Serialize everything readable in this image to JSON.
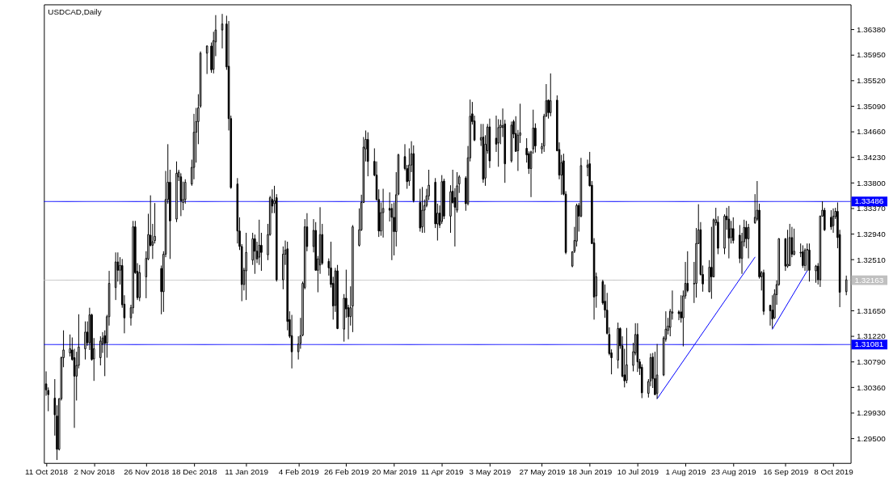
{
  "chart_data": {
    "type": "candlestick",
    "title": "USDCAD,Daily",
    "color": "#000000",
    "x": [
      "2018-10-11",
      "2018-10-12",
      "2018-10-15",
      "2018-10-16",
      "2018-10-17",
      "2018-10-18",
      "2018-10-19",
      "2018-10-22",
      "2018-10-23",
      "2018-10-24",
      "2018-10-25",
      "2018-10-26",
      "2018-10-29",
      "2018-10-30",
      "2018-10-31",
      "2018-11-01",
      "2018-11-02",
      "2018-11-05",
      "2018-11-06",
      "2018-11-07",
      "2018-11-08",
      "2018-11-09",
      "2018-11-12",
      "2018-11-13",
      "2018-11-14",
      "2018-11-15",
      "2018-11-16",
      "2018-11-19",
      "2018-11-20",
      "2018-11-21",
      "2018-11-22",
      "2018-11-23",
      "2018-11-26",
      "2018-11-27",
      "2018-11-28",
      "2018-11-29",
      "2018-11-30",
      "2018-12-03",
      "2018-12-04",
      "2018-12-05",
      "2018-12-06",
      "2018-12-07",
      "2018-12-10",
      "2018-12-11",
      "2018-12-12",
      "2018-12-13",
      "2018-12-14",
      "2018-12-17",
      "2018-12-18",
      "2018-12-19",
      "2018-12-20",
      "2018-12-21",
      "2018-12-24",
      "2018-12-26",
      "2018-12-27",
      "2018-12-28",
      "2018-12-31",
      "2019-01-02",
      "2019-01-03",
      "2019-01-04",
      "2019-01-07",
      "2019-01-08",
      "2019-01-09",
      "2019-01-10",
      "2019-01-11",
      "2019-01-14",
      "2019-01-15",
      "2019-01-16",
      "2019-01-17",
      "2019-01-18",
      "2019-01-21",
      "2019-01-22",
      "2019-01-23",
      "2019-01-24",
      "2019-01-25",
      "2019-01-28",
      "2019-01-29",
      "2019-01-30",
      "2019-01-31",
      "2019-02-01",
      "2019-02-04",
      "2019-02-05",
      "2019-02-06",
      "2019-02-07",
      "2019-02-08",
      "2019-02-11",
      "2019-02-12",
      "2019-02-13",
      "2019-02-14",
      "2019-02-15",
      "2019-02-18",
      "2019-02-19",
      "2019-02-20",
      "2019-02-21",
      "2019-02-22",
      "2019-02-25",
      "2019-02-26",
      "2019-02-27",
      "2019-02-28",
      "2019-03-01",
      "2019-03-04",
      "2019-03-05",
      "2019-03-06",
      "2019-03-07",
      "2019-03-08",
      "2019-03-11",
      "2019-03-12",
      "2019-03-13",
      "2019-03-14",
      "2019-03-15",
      "2019-03-18",
      "2019-03-19",
      "2019-03-20",
      "2019-03-21",
      "2019-03-22",
      "2019-03-25",
      "2019-03-26",
      "2019-03-27",
      "2019-03-28",
      "2019-03-29",
      "2019-04-01",
      "2019-04-02",
      "2019-04-03",
      "2019-04-04",
      "2019-04-05",
      "2019-04-08",
      "2019-04-09",
      "2019-04-10",
      "2019-04-11",
      "2019-04-12",
      "2019-04-15",
      "2019-04-16",
      "2019-04-17",
      "2019-04-18",
      "2019-04-19",
      "2019-04-22",
      "2019-04-23",
      "2019-04-24",
      "2019-04-25",
      "2019-04-26",
      "2019-04-29",
      "2019-04-30",
      "2019-05-01",
      "2019-05-02",
      "2019-05-03",
      "2019-05-06",
      "2019-05-07",
      "2019-05-08",
      "2019-05-09",
      "2019-05-10",
      "2019-05-13",
      "2019-05-14",
      "2019-05-15",
      "2019-05-16",
      "2019-05-17",
      "2019-05-20",
      "2019-05-21",
      "2019-05-22",
      "2019-05-23",
      "2019-05-24",
      "2019-05-27",
      "2019-05-28",
      "2019-05-29",
      "2019-05-30",
      "2019-05-31",
      "2019-06-03",
      "2019-06-04",
      "2019-06-05",
      "2019-06-06",
      "2019-06-07",
      "2019-06-10",
      "2019-06-11",
      "2019-06-12",
      "2019-06-13",
      "2019-06-14",
      "2019-06-17",
      "2019-06-18",
      "2019-06-19",
      "2019-06-20",
      "2019-06-21",
      "2019-06-24",
      "2019-06-25",
      "2019-06-26",
      "2019-06-27",
      "2019-06-28",
      "2019-07-01",
      "2019-07-02",
      "2019-07-03",
      "2019-07-04",
      "2019-07-05",
      "2019-07-08",
      "2019-07-09",
      "2019-07-10",
      "2019-07-11",
      "2019-07-12",
      "2019-07-15",
      "2019-07-16",
      "2019-07-17",
      "2019-07-18",
      "2019-07-19",
      "2019-07-22",
      "2019-07-23",
      "2019-07-24",
      "2019-07-25",
      "2019-07-26",
      "2019-07-29",
      "2019-07-30",
      "2019-07-31",
      "2019-08-01",
      "2019-08-02",
      "2019-08-05",
      "2019-08-06",
      "2019-08-07",
      "2019-08-08",
      "2019-08-09",
      "2019-08-12",
      "2019-08-13",
      "2019-08-14",
      "2019-08-15",
      "2019-08-16",
      "2019-08-19",
      "2019-08-20",
      "2019-08-21",
      "2019-08-22",
      "2019-08-23",
      "2019-08-26",
      "2019-08-27",
      "2019-08-28",
      "2019-08-29",
      "2019-08-30",
      "2019-09-02",
      "2019-09-03",
      "2019-09-04",
      "2019-09-05",
      "2019-09-06",
      "2019-09-09",
      "2019-09-10",
      "2019-09-11",
      "2019-09-12",
      "2019-09-13",
      "2019-09-16",
      "2019-09-17",
      "2019-09-18",
      "2019-09-19",
      "2019-09-20",
      "2019-09-23",
      "2019-09-24",
      "2019-09-25",
      "2019-09-26",
      "2019-09-27",
      "2019-09-30",
      "2019-10-01",
      "2019-10-02",
      "2019-10-03",
      "2019-10-04",
      "2019-10-07",
      "2019-10-08",
      "2019-10-09",
      "2019-10-10",
      "2019-10-11",
      "2019-10-14"
    ],
    "ohlc": [
      [
        1.3042,
        1.3063,
        1.3022,
        1.3032
      ],
      [
        1.3031,
        1.3036,
        1.2996,
        1.3024
      ],
      [
        1.3018,
        1.305,
        1.2955,
        1.299
      ],
      [
        1.2988,
        1.3006,
        1.2914,
        1.2932
      ],
      [
        1.2932,
        1.3018,
        1.293,
        1.3017
      ],
      [
        1.3017,
        1.3088,
        1.3014,
        1.3086
      ],
      [
        1.3086,
        1.3132,
        1.307,
        1.3099
      ],
      [
        1.3094,
        1.3125,
        1.3088,
        1.3101
      ],
      [
        1.3099,
        1.312,
        1.3081,
        1.3083
      ],
      [
        1.3086,
        1.3101,
        1.2968,
        1.3055
      ],
      [
        1.3055,
        1.3096,
        1.3014,
        1.3073
      ],
      [
        1.3073,
        1.3159,
        1.3068,
        1.3104
      ],
      [
        1.3101,
        1.3147,
        1.3083,
        1.3129
      ],
      [
        1.3129,
        1.3147,
        1.3106,
        1.3111
      ],
      [
        1.3111,
        1.317,
        1.3099,
        1.3158
      ],
      [
        1.3158,
        1.316,
        1.3081,
        1.3083
      ],
      [
        1.3084,
        1.3119,
        1.3047,
        1.3101
      ],
      [
        1.3086,
        1.3122,
        1.3073,
        1.3114
      ],
      [
        1.3109,
        1.3129,
        1.3094,
        1.3119
      ],
      [
        1.3123,
        1.3132,
        1.3055,
        1.311
      ],
      [
        1.3111,
        1.3158,
        1.3086,
        1.3155
      ],
      [
        1.3155,
        1.3232,
        1.314,
        1.3211
      ],
      [
        1.3204,
        1.3263,
        1.3183,
        1.3247
      ],
      [
        1.3247,
        1.3263,
        1.3214,
        1.3233
      ],
      [
        1.3233,
        1.3255,
        1.3209,
        1.3241
      ],
      [
        1.3241,
        1.3252,
        1.317,
        1.3175
      ],
      [
        1.3176,
        1.3191,
        1.3127,
        1.3153
      ],
      [
        1.3153,
        1.3175,
        1.314,
        1.317
      ],
      [
        1.317,
        1.3316,
        1.316,
        1.3306
      ],
      [
        1.3306,
        1.3316,
        1.3227,
        1.3229
      ],
      [
        1.3231,
        1.3245,
        1.3183,
        1.3187
      ],
      [
        1.3187,
        1.3242,
        1.3181,
        1.3229
      ],
      [
        1.3222,
        1.3265,
        1.3186,
        1.3253
      ],
      [
        1.3252,
        1.3328,
        1.325,
        1.3293
      ],
      [
        1.3292,
        1.3359,
        1.3273,
        1.3275
      ],
      [
        1.3275,
        1.3311,
        1.3252,
        1.3281
      ],
      [
        1.3283,
        1.3346,
        1.3278,
        1.329
      ],
      [
        1.3236,
        1.3241,
        1.3159,
        1.3197
      ],
      [
        1.3197,
        1.3265,
        1.3163,
        1.326
      ],
      [
        1.326,
        1.34,
        1.3255,
        1.3352
      ],
      [
        1.3352,
        1.3445,
        1.3345,
        1.3381
      ],
      [
        1.3381,
        1.3402,
        1.3252,
        1.3316
      ],
      [
        1.3319,
        1.3416,
        1.3314,
        1.3396
      ],
      [
        1.339,
        1.3402,
        1.3383,
        1.3398
      ],
      [
        1.339,
        1.3396,
        1.3324,
        1.335
      ],
      [
        1.3347,
        1.3382,
        1.3334,
        1.3352
      ],
      [
        1.3352,
        1.3386,
        1.3345,
        1.3381
      ],
      [
        1.3378,
        1.3419,
        1.3375,
        1.3406
      ],
      [
        1.3406,
        1.3496,
        1.3386,
        1.3465
      ],
      [
        1.3465,
        1.3506,
        1.3414,
        1.3483
      ],
      [
        1.3483,
        1.3529,
        1.3445,
        1.3506
      ],
      [
        1.3509,
        1.3601,
        1.3506,
        1.3598
      ],
      [
        1.3598,
        1.3611,
        1.3563,
        1.361
      ],
      [
        1.361,
        1.3616,
        1.3565,
        1.357
      ],
      [
        1.3571,
        1.3634,
        1.3564,
        1.3619
      ],
      [
        1.3617,
        1.3662,
        1.3593,
        1.3637
      ],
      [
        1.3637,
        1.3664,
        1.3606,
        1.3647
      ],
      [
        1.3647,
        1.3661,
        1.357,
        1.3575
      ],
      [
        1.3576,
        1.3652,
        1.3468,
        1.3488
      ],
      [
        1.3488,
        1.3493,
        1.337,
        1.3372
      ],
      [
        1.3378,
        1.3388,
        1.3278,
        1.3299
      ],
      [
        1.3299,
        1.3322,
        1.3267,
        1.3273
      ],
      [
        1.3273,
        1.3277,
        1.3181,
        1.3209
      ],
      [
        1.3209,
        1.3237,
        1.3199,
        1.3233
      ],
      [
        1.3232,
        1.3296,
        1.3183,
        1.3263
      ],
      [
        1.325,
        1.3296,
        1.3242,
        1.3286
      ],
      [
        1.3286,
        1.3293,
        1.3227,
        1.3265
      ],
      [
        1.3265,
        1.3281,
        1.3245,
        1.3252
      ],
      [
        1.3255,
        1.3318,
        1.3242,
        1.3275
      ],
      [
        1.3275,
        1.3296,
        1.3232,
        1.3263
      ],
      [
        1.3259,
        1.3311,
        1.325,
        1.3293
      ],
      [
        1.3293,
        1.3358,
        1.3291,
        1.3355
      ],
      [
        1.3352,
        1.3369,
        1.3329,
        1.3341
      ],
      [
        1.3345,
        1.3375,
        1.3329,
        1.335
      ],
      [
        1.3355,
        1.3361,
        1.3214,
        1.3217
      ],
      [
        1.3217,
        1.3273,
        1.3201,
        1.326
      ],
      [
        1.326,
        1.3283,
        1.3242,
        1.3267
      ],
      [
        1.3269,
        1.3281,
        1.3132,
        1.3147
      ],
      [
        1.315,
        1.3164,
        1.3119,
        1.3122
      ],
      [
        1.3123,
        1.3158,
        1.3068,
        1.3096
      ],
      [
        1.3096,
        1.3122,
        1.3083,
        1.3109
      ],
      [
        1.311,
        1.3153,
        1.3101,
        1.3123
      ],
      [
        1.3124,
        1.3214,
        1.3122,
        1.3211
      ],
      [
        1.3204,
        1.3319,
        1.3201,
        1.3306
      ],
      [
        1.3306,
        1.3329,
        1.3265,
        1.3273
      ],
      [
        1.3273,
        1.3319,
        1.3263,
        1.33
      ],
      [
        1.33,
        1.3314,
        1.3232,
        1.3233
      ],
      [
        1.3233,
        1.3257,
        1.3196,
        1.3252
      ],
      [
        1.3242,
        1.3339,
        1.3227,
        1.3293
      ],
      [
        1.3293,
        1.3311,
        1.3242,
        1.3245
      ],
      [
        1.3248,
        1.3253,
        1.3224,
        1.3237
      ],
      [
        1.3237,
        1.3281,
        1.3204,
        1.3209
      ],
      [
        1.3211,
        1.3222,
        1.315,
        1.3173
      ],
      [
        1.3174,
        1.3237,
        1.3163,
        1.3232
      ],
      [
        1.3232,
        1.3242,
        1.3134,
        1.3135
      ],
      [
        1.3134,
        1.3193,
        1.3113,
        1.3186
      ],
      [
        1.3186,
        1.3234,
        1.3153,
        1.3168
      ],
      [
        1.317,
        1.3175,
        1.3117,
        1.3155
      ],
      [
        1.3155,
        1.3206,
        1.314,
        1.317
      ],
      [
        1.3173,
        1.3309,
        1.3129,
        1.3306
      ],
      [
        1.3275,
        1.3337,
        1.3273,
        1.3301
      ],
      [
        1.3301,
        1.336,
        1.3299,
        1.3347
      ],
      [
        1.3347,
        1.3457,
        1.3346,
        1.344
      ],
      [
        1.3437,
        1.3468,
        1.3416,
        1.3453
      ],
      [
        1.3453,
        1.3465,
        1.3391,
        1.3416
      ],
      [
        1.3416,
        1.3438,
        1.3391,
        1.3393
      ],
      [
        1.3393,
        1.3416,
        1.335,
        1.3352
      ],
      [
        1.3352,
        1.3369,
        1.3289,
        1.3299
      ],
      [
        1.3299,
        1.3347,
        1.3291,
        1.333
      ],
      [
        1.333,
        1.337,
        1.3288,
        1.3337
      ],
      [
        1.3337,
        1.3364,
        1.3315,
        1.3334
      ],
      [
        1.3337,
        1.3345,
        1.325,
        1.3322
      ],
      [
        1.3322,
        1.3347,
        1.3258,
        1.3298
      ],
      [
        1.3298,
        1.3398,
        1.3273,
        1.336
      ],
      [
        1.3361,
        1.3429,
        1.3359,
        1.3427
      ],
      [
        1.3424,
        1.3445,
        1.3401,
        1.3404
      ],
      [
        1.3404,
        1.341,
        1.337,
        1.3382
      ],
      [
        1.3383,
        1.3438,
        1.3375,
        1.341
      ],
      [
        1.341,
        1.345,
        1.3398,
        1.3429
      ],
      [
        1.3429,
        1.3443,
        1.3347,
        1.335
      ],
      [
        1.3347,
        1.337,
        1.3298,
        1.3304
      ],
      [
        1.3306,
        1.3373,
        1.3296,
        1.3334
      ],
      [
        1.3334,
        1.3352,
        1.3296,
        1.3342
      ],
      [
        1.3342,
        1.337,
        1.3339,
        1.3358
      ],
      [
        1.3358,
        1.3402,
        1.3351,
        1.3376
      ],
      [
        1.3381,
        1.3388,
        1.3304,
        1.3311
      ],
      [
        1.3311,
        1.3345,
        1.3283,
        1.3329
      ],
      [
        1.3329,
        1.3342,
        1.3304,
        1.3309
      ],
      [
        1.3315,
        1.3393,
        1.3311,
        1.3382
      ],
      [
        1.3383,
        1.3387,
        1.3319,
        1.3324
      ],
      [
        1.3324,
        1.3376,
        1.3296,
        1.3365
      ],
      [
        1.3366,
        1.3402,
        1.3345,
        1.3347
      ],
      [
        1.3355,
        1.3371,
        1.3273,
        1.3339
      ],
      [
        1.3334,
        1.3398,
        1.333,
        1.3375
      ],
      [
        1.3378,
        1.3393,
        1.3363,
        1.339
      ],
      [
        1.3388,
        1.3391,
        1.3333,
        1.3345
      ],
      [
        1.3345,
        1.3442,
        1.3342,
        1.3422
      ],
      [
        1.3422,
        1.352,
        1.3416,
        1.3492
      ],
      [
        1.3496,
        1.3516,
        1.3478,
        1.3483
      ],
      [
        1.3484,
        1.3493,
        1.345,
        1.3452
      ],
      [
        1.3452,
        1.3479,
        1.3442,
        1.3456
      ],
      [
        1.3457,
        1.3479,
        1.338,
        1.3386
      ],
      [
        1.3388,
        1.346,
        1.3375,
        1.3445
      ],
      [
        1.3434,
        1.3479,
        1.3429,
        1.3474
      ],
      [
        1.3474,
        1.3488,
        1.3405,
        1.3417
      ],
      [
        1.3455,
        1.3493,
        1.3432,
        1.3445
      ],
      [
        1.3447,
        1.3487,
        1.3407,
        1.3473
      ],
      [
        1.3473,
        1.3486,
        1.3445,
        1.3477
      ],
      [
        1.3473,
        1.3505,
        1.3457,
        1.3476
      ],
      [
        1.3479,
        1.3486,
        1.338,
        1.3412
      ],
      [
        1.3417,
        1.3483,
        1.3414,
        1.3477
      ],
      [
        1.3483,
        1.3486,
        1.3455,
        1.3462
      ],
      [
        1.3463,
        1.3492,
        1.3432,
        1.3433
      ],
      [
        1.3434,
        1.3469,
        1.34,
        1.346
      ],
      [
        1.346,
        1.3513,
        1.3447,
        1.3464
      ],
      [
        1.3438,
        1.3455,
        1.3414,
        1.3427
      ],
      [
        1.3429,
        1.3433,
        1.3395,
        1.3404
      ],
      [
        1.3404,
        1.3434,
        1.3356,
        1.3432
      ],
      [
        1.3437,
        1.3503,
        1.3429,
        1.3472
      ],
      [
        1.3472,
        1.348,
        1.3431,
        1.3442
      ],
      [
        1.3437,
        1.3447,
        1.3429,
        1.3441
      ],
      [
        1.3442,
        1.3496,
        1.3432,
        1.3492
      ],
      [
        1.3492,
        1.3546,
        1.3491,
        1.3518
      ],
      [
        1.3519,
        1.352,
        1.3488,
        1.3498
      ],
      [
        1.3498,
        1.3564,
        1.3492,
        1.3518
      ],
      [
        1.3519,
        1.3527,
        1.3433,
        1.3434
      ],
      [
        1.3436,
        1.3448,
        1.3386,
        1.3393
      ],
      [
        1.3393,
        1.3427,
        1.336,
        1.3414
      ],
      [
        1.3417,
        1.3429,
        1.3359,
        1.3361
      ],
      [
        1.3361,
        1.3366,
        1.326,
        1.3263
      ],
      [
        1.324,
        1.3265,
        1.3238,
        1.3264
      ],
      [
        1.3265,
        1.3306,
        1.3262,
        1.3283
      ],
      [
        1.3282,
        1.3345,
        1.3273,
        1.3342
      ],
      [
        1.3342,
        1.3346,
        1.3298,
        1.3324
      ],
      [
        1.3324,
        1.3422,
        1.3322,
        1.3409
      ],
      [
        1.3406,
        1.3419,
        1.3391,
        1.341
      ],
      [
        1.3412,
        1.3432,
        1.3374,
        1.3375
      ],
      [
        1.3376,
        1.3383,
        1.3277,
        1.3278
      ],
      [
        1.3279,
        1.3287,
        1.315,
        1.3188
      ],
      [
        1.319,
        1.3229,
        1.317,
        1.3222
      ],
      [
        1.3214,
        1.3217,
        1.3175,
        1.3178
      ],
      [
        1.3181,
        1.3209,
        1.3153,
        1.3166
      ],
      [
        1.3166,
        1.3195,
        1.3125,
        1.3127
      ],
      [
        1.3125,
        1.3137,
        1.309,
        1.3093
      ],
      [
        1.3094,
        1.31,
        1.3058,
        1.3086
      ],
      [
        1.3082,
        1.3145,
        1.3068,
        1.3135
      ],
      [
        1.3135,
        1.3137,
        1.3101,
        1.3106
      ],
      [
        1.3106,
        1.3122,
        1.3053,
        1.3055
      ],
      [
        1.3057,
        1.3101,
        1.3036,
        1.3047
      ],
      [
        1.3048,
        1.3136,
        1.3043,
        1.3074
      ],
      [
        1.3073,
        1.3111,
        1.3063,
        1.3096
      ],
      [
        1.3094,
        1.3144,
        1.309,
        1.3125
      ],
      [
        1.3125,
        1.3144,
        1.3062,
        1.3079
      ],
      [
        1.3079,
        1.3084,
        1.3057,
        1.3068
      ],
      [
        1.307,
        1.3075,
        1.3018,
        1.3027
      ],
      [
        1.3026,
        1.305,
        1.3019,
        1.3046
      ],
      [
        1.3047,
        1.3093,
        1.3038,
        1.3086
      ],
      [
        1.3087,
        1.3094,
        1.3035,
        1.3051
      ],
      [
        1.3051,
        1.3096,
        1.3023,
        1.3024
      ],
      [
        1.3026,
        1.3109,
        1.3017,
        1.3057
      ],
      [
        1.3057,
        1.3122,
        1.3055,
        1.3119
      ],
      [
        1.3117,
        1.3164,
        1.3113,
        1.3134
      ],
      [
        1.3132,
        1.3153,
        1.3125,
        1.3139
      ],
      [
        1.3137,
        1.3168,
        1.3122,
        1.3164
      ],
      [
        1.3161,
        1.3199,
        1.315,
        1.3163
      ],
      [
        1.3163,
        1.3166,
        1.3149,
        1.316
      ],
      [
        1.3163,
        1.3191,
        1.3145,
        1.3153
      ],
      [
        1.3153,
        1.3199,
        1.3105,
        1.319
      ],
      [
        1.319,
        1.3247,
        1.3185,
        1.3211
      ],
      [
        1.3211,
        1.3265,
        1.3196,
        1.3199
      ],
      [
        1.321,
        1.3247,
        1.3178,
        1.3211
      ],
      [
        1.3211,
        1.3304,
        1.3187,
        1.3278
      ],
      [
        1.3278,
        1.3344,
        1.3277,
        1.3301
      ],
      [
        1.3301,
        1.3314,
        1.3224,
        1.3226
      ],
      [
        1.3226,
        1.3241,
        1.3197,
        1.321
      ],
      [
        1.3197,
        1.325,
        1.3196,
        1.3238
      ],
      [
        1.3238,
        1.3306,
        1.3185,
        1.3222
      ],
      [
        1.3222,
        1.332,
        1.3221,
        1.3318
      ],
      [
        1.3313,
        1.3338,
        1.3308,
        1.3318
      ],
      [
        1.3314,
        1.3324,
        1.326,
        1.327
      ],
      [
        1.327,
        1.3327,
        1.326,
        1.3324
      ],
      [
        1.3324,
        1.3338,
        1.3301,
        1.3318
      ],
      [
        1.3319,
        1.3341,
        1.3253,
        1.3287
      ],
      [
        1.3288,
        1.3316,
        1.3278,
        1.3303
      ],
      [
        1.3303,
        1.3322,
        1.3278,
        1.3283
      ],
      [
        1.3292,
        1.3309,
        1.3245,
        1.3253
      ],
      [
        1.3253,
        1.3296,
        1.3227,
        1.3281
      ],
      [
        1.3281,
        1.3318,
        1.3273,
        1.3305
      ],
      [
        1.3305,
        1.3316,
        1.327,
        1.3286
      ],
      [
        1.3286,
        1.3311,
        1.3253,
        1.3305
      ],
      [
        1.3313,
        1.3361,
        1.3311,
        1.3322
      ],
      [
        1.3319,
        1.3383,
        1.3316,
        1.3334
      ],
      [
        1.3334,
        1.3345,
        1.3219,
        1.3222
      ],
      [
        1.3222,
        1.3232,
        1.3199,
        1.3229
      ],
      [
        1.3229,
        1.3234,
        1.3158,
        1.3164
      ],
      [
        1.3174,
        1.3175,
        1.314,
        1.3165
      ],
      [
        1.3166,
        1.3191,
        1.3135,
        1.3151
      ],
      [
        1.3153,
        1.3201,
        1.3151,
        1.3193
      ],
      [
        1.3192,
        1.3216,
        1.3175,
        1.3209
      ],
      [
        1.3209,
        1.3287,
        1.3207,
        1.3286
      ],
      [
        1.3286,
        1.3287,
        1.3232,
        1.324
      ],
      [
        1.324,
        1.3301,
        1.3237,
        1.3243
      ],
      [
        1.3241,
        1.3311,
        1.324,
        1.3288
      ],
      [
        1.3288,
        1.3306,
        1.3255,
        1.326
      ],
      [
        1.326,
        1.3303,
        1.3258,
        1.3265
      ],
      [
        1.3262,
        1.3278,
        1.3255,
        1.3263
      ],
      [
        1.3264,
        1.3275,
        1.3237,
        1.3241
      ],
      [
        1.3241,
        1.327,
        1.3232,
        1.3267
      ],
      [
        1.3267,
        1.3278,
        1.3232,
        1.3268
      ],
      [
        1.3267,
        1.3278,
        1.3214,
        1.3233
      ],
      [
        1.3232,
        1.3242,
        1.3212,
        1.324
      ],
      [
        1.324,
        1.3245,
        1.3209,
        1.3217
      ],
      [
        1.3217,
        1.3325,
        1.3205,
        1.3324
      ],
      [
        1.3324,
        1.3349,
        1.3323,
        1.3334
      ],
      [
        1.3334,
        1.3338,
        1.3299,
        1.3301
      ],
      [
        1.3322,
        1.3334,
        1.3301,
        1.3306
      ],
      [
        1.3308,
        1.3337,
        1.3296,
        1.3324
      ],
      [
        1.3323,
        1.3338,
        1.3319,
        1.3332
      ],
      [
        1.3332,
        1.3347,
        1.327,
        1.3288
      ],
      [
        1.3293,
        1.3301,
        1.3171,
        1.3196
      ],
      [
        1.3197,
        1.3224,
        1.3191,
        1.3217
      ]
    ],
    "series": [
      {
        "type": "line",
        "color": "#0000ff",
        "x": [
          "2019-07-19",
          "2019-09-02"
        ],
        "values": [
          1.3017,
          1.3255
        ]
      },
      {
        "type": "line",
        "color": "#0000ff",
        "x": [
          "2019-09-10",
          "2019-09-26"
        ],
        "values": [
          1.3134,
          1.3232
        ]
      }
    ],
    "ref_lines": [
      {
        "axis": "y",
        "value": 1.33486,
        "label": "1.33486",
        "color": "#0000ff"
      },
      {
        "axis": "y",
        "value": 1.31081,
        "label": "1.31081",
        "color": "#0000ff"
      },
      {
        "axis": "y",
        "value": 1.32163,
        "label": "1.32163",
        "color": "#c0c0c0"
      }
    ],
    "xlim": [
      "2018-10-10",
      "2019-10-16"
    ],
    "ylim": [
      1.2909,
      1.368
    ],
    "xticks": [
      {
        "value": "2018-10-11",
        "label": "11 Oct 2018"
      },
      {
        "value": "2018-11-02",
        "label": "2 Nov 2018"
      },
      {
        "value": "2018-11-26",
        "label": "26 Nov 2018"
      },
      {
        "value": "2018-12-18",
        "label": "18 Dec 2018"
      },
      {
        "value": "2019-01-11",
        "label": "11 Jan 2019"
      },
      {
        "value": "2019-02-04",
        "label": "4 Feb 2019"
      },
      {
        "value": "2019-02-26",
        "label": "26 Feb 2019"
      },
      {
        "value": "2019-03-20",
        "label": "20 Mar 2019"
      },
      {
        "value": "2019-04-11",
        "label": "11 Apr 2019"
      },
      {
        "value": "2019-05-03",
        "label": "3 May 2019"
      },
      {
        "value": "2019-05-27",
        "label": "27 May 2019"
      },
      {
        "value": "2019-06-18",
        "label": "18 Jun 2019"
      },
      {
        "value": "2019-07-10",
        "label": "10 Jul 2019"
      },
      {
        "value": "2019-08-01",
        "label": "1 Aug 2019"
      },
      {
        "value": "2019-08-23",
        "label": "23 Aug 2019"
      },
      {
        "value": "2019-09-16",
        "label": "16 Sep 2019"
      },
      {
        "value": "2019-10-08",
        "label": "8 Oct 2019"
      }
    ],
    "yticks": [
      {
        "value": 1.295,
        "label": "1.29500"
      },
      {
        "value": 1.2993,
        "label": "1.29930"
      },
      {
        "value": 1.3036,
        "label": "1.30360"
      },
      {
        "value": 1.3079,
        "label": "1.30790"
      },
      {
        "value": 1.3122,
        "label": "1.31220"
      },
      {
        "value": 1.3165,
        "label": "1.31650"
      },
      {
        "value": 1.3251,
        "label": "1.32510"
      },
      {
        "value": 1.3294,
        "label": "1.32940"
      },
      {
        "value": 1.3337,
        "label": "1.33370"
      },
      {
        "value": 1.338,
        "label": "1.33800"
      },
      {
        "value": 1.3423,
        "label": "1.34230"
      },
      {
        "value": 1.3466,
        "label": "1.34660"
      },
      {
        "value": 1.3509,
        "label": "1.35090"
      },
      {
        "value": 1.3552,
        "label": "1.35520"
      },
      {
        "value": 1.3595,
        "label": "1.35950"
      },
      {
        "value": 1.3638,
        "label": "1.36380"
      }
    ]
  }
}
